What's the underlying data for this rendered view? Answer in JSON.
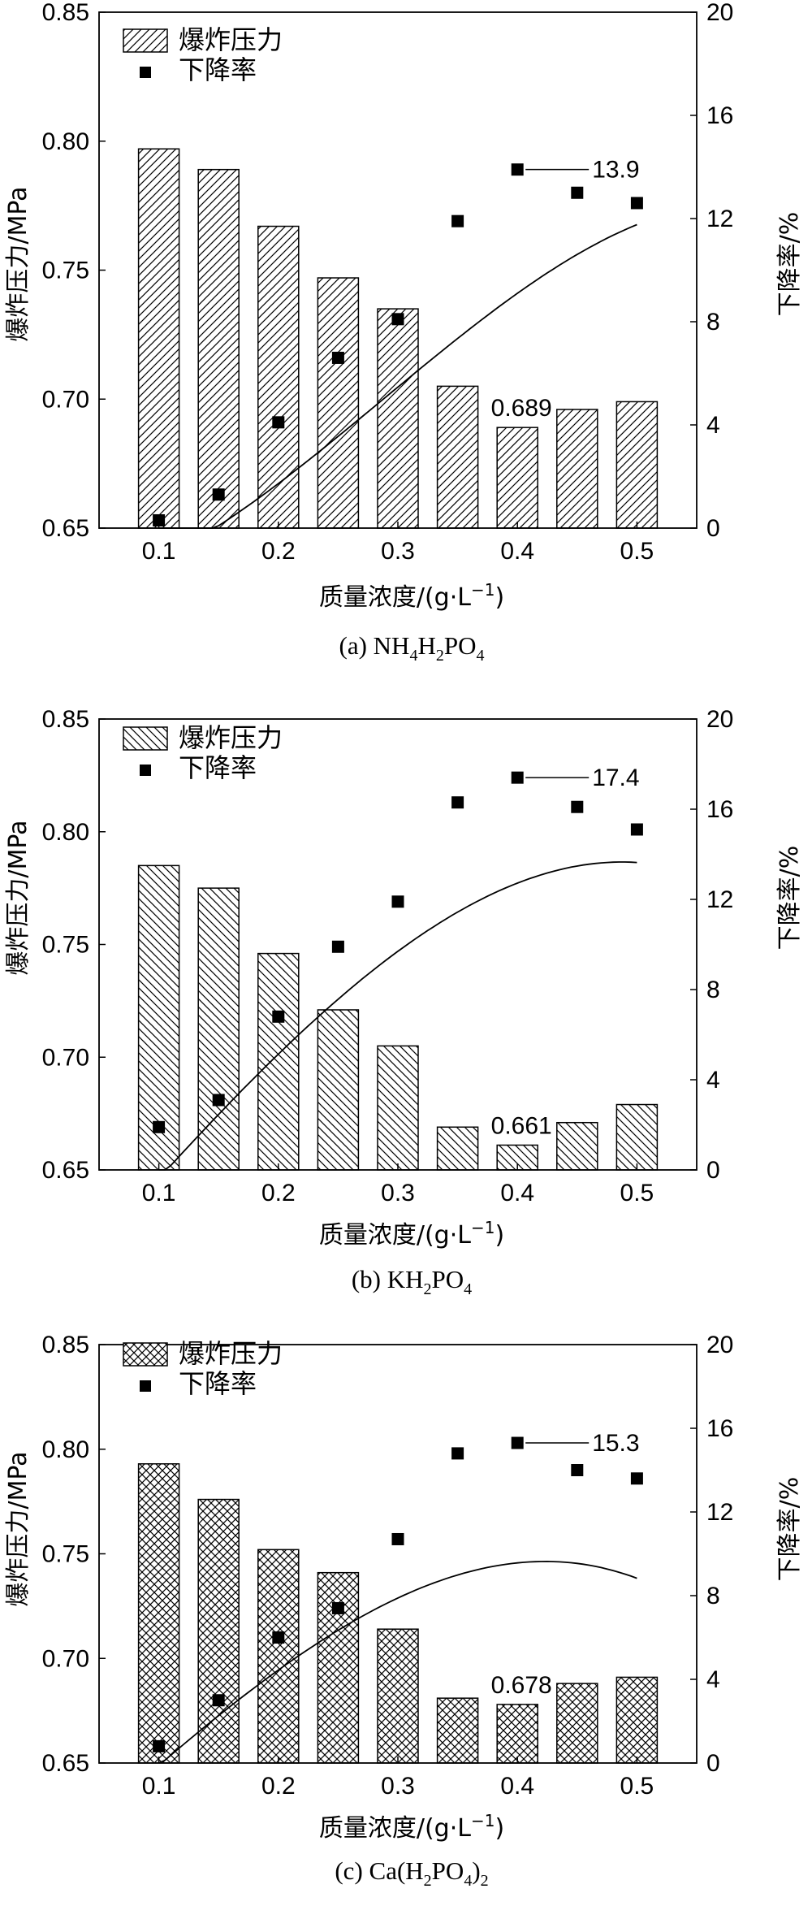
{
  "figure": {
    "legend": {
      "bar": "爆炸压力",
      "marker": "下降率"
    },
    "x_label_prefix": "质量浓度/(g·L",
    "x_label_sup": "−1",
    "x_label_suffix": ")",
    "y_left_label": "爆炸压力/MPa",
    "y_right_label": "下降率/%"
  },
  "chart_data": [
    {
      "type": "bar",
      "caption": {
        "prefix": "(a) NH",
        "s1": "4",
        "m1": "H",
        "s2": "2",
        "m2": "PO",
        "s3": "4",
        "m3": "",
        "s4": ""
      },
      "bar_pattern": "diagonal-up",
      "x": [
        0.1,
        0.15,
        0.2,
        0.25,
        0.3,
        0.35,
        0.4,
        0.45,
        0.5
      ],
      "x_ticks": [
        "0.1",
        "0.2",
        "0.3",
        "0.4",
        "0.5"
      ],
      "x_tick_values": [
        0.1,
        0.2,
        0.3,
        0.4,
        0.5
      ],
      "series": [
        {
          "name": "爆炸压力",
          "axis": "left",
          "values": [
            0.797,
            0.789,
            0.767,
            0.747,
            0.735,
            0.705,
            0.689,
            0.696,
            0.699
          ]
        },
        {
          "name": "下降率",
          "axis": "right",
          "values": [
            0.3,
            1.3,
            4.1,
            6.6,
            8.1,
            11.9,
            13.9,
            13.0,
            12.6
          ]
        }
      ],
      "y_left_ticks": [
        "0.65",
        "0.70",
        "0.75",
        "0.80",
        "0.85"
      ],
      "y_right_ticks": [
        "0",
        "4",
        "8",
        "12",
        "16",
        "20"
      ],
      "ylim_left": [
        0.65,
        0.85
      ],
      "ylim_right": [
        0,
        20
      ],
      "xlim": [
        0.05,
        0.55
      ],
      "trend_poly": [
        -2.58,
        2.26,
        125.4,
        -145.1
      ],
      "annotations": {
        "min_bar": "0.689",
        "max_rate": "13.9",
        "min_bar_x": 0.4,
        "max_rate_x": 0.4
      }
    },
    {
      "type": "bar",
      "caption": {
        "prefix": "(b) KH",
        "s1": "2",
        "m1": "PO",
        "s2": "4",
        "m2": "",
        "s3": "",
        "m3": "",
        "s4": ""
      },
      "bar_pattern": "diagonal-down",
      "x": [
        0.1,
        0.15,
        0.2,
        0.25,
        0.3,
        0.35,
        0.4,
        0.45,
        0.5
      ],
      "x_ticks": [
        "0.1",
        "0.2",
        "0.3",
        "0.4",
        "0.5"
      ],
      "x_tick_values": [
        0.1,
        0.2,
        0.3,
        0.4,
        0.5
      ],
      "series": [
        {
          "name": "爆炸压力",
          "axis": "left",
          "values": [
            0.785,
            0.775,
            0.746,
            0.721,
            0.705,
            0.669,
            0.661,
            0.671,
            0.679
          ]
        },
        {
          "name": "下降率",
          "axis": "right",
          "values": [
            1.9,
            3.1,
            6.8,
            9.9,
            11.9,
            16.3,
            17.4,
            16.1,
            15.1
          ]
        }
      ],
      "y_left_ticks": [
        "0.65",
        "0.70",
        "0.75",
        "0.80",
        "0.85"
      ],
      "y_right_ticks": [
        "0",
        "4",
        "8",
        "12",
        "16",
        "20"
      ],
      "ylim_left": [
        0.65,
        0.85
      ],
      "ylim_right": [
        0,
        20
      ],
      "xlim": [
        0.05,
        0.55
      ],
      "trend_poly": [
        -6.29,
        59.08,
        9.4,
        -95.7
      ],
      "annotations": {
        "min_bar": "0.661",
        "max_rate": "17.4",
        "min_bar_x": 0.4,
        "max_rate_x": 0.4
      }
    },
    {
      "type": "bar",
      "caption": {
        "prefix": "(c) Ca(H",
        "s1": "2",
        "m1": "PO",
        "s2": "4",
        "m2": ")",
        "s3": "2",
        "m3": "",
        "s4": ""
      },
      "bar_pattern": "crosshatch",
      "x": [
        0.1,
        0.15,
        0.2,
        0.25,
        0.3,
        0.35,
        0.4,
        0.45,
        0.5
      ],
      "x_ticks": [
        "0.1",
        "0.2",
        "0.3",
        "0.4",
        "0.5"
      ],
      "x_tick_values": [
        0.1,
        0.2,
        0.3,
        0.4,
        0.5
      ],
      "series": [
        {
          "name": "爆炸压力",
          "axis": "left",
          "values": [
            0.793,
            0.776,
            0.752,
            0.741,
            0.714,
            0.681,
            0.678,
            0.688,
            0.691
          ]
        },
        {
          "name": "下降率",
          "axis": "right",
          "values": [
            0.8,
            3.0,
            6.0,
            7.4,
            10.7,
            14.8,
            15.3,
            14.0,
            13.6
          ]
        }
      ],
      "y_left_ticks": [
        "0.65",
        "0.70",
        "0.75",
        "0.80",
        "0.85"
      ],
      "y_right_ticks": [
        "0",
        "4",
        "8",
        "12",
        "16",
        "20"
      ],
      "ylim_left": [
        0.65,
        0.85
      ],
      "ylim_right": [
        0,
        20
      ],
      "xlim": [
        0.05,
        0.55
      ],
      "trend_poly": [
        -5.14,
        50.42,
        9.14,
        -108.2
      ],
      "annotations": {
        "min_bar": "0.678",
        "max_rate": "15.3",
        "min_bar_x": 0.4,
        "max_rate_x": 0.4
      }
    }
  ]
}
